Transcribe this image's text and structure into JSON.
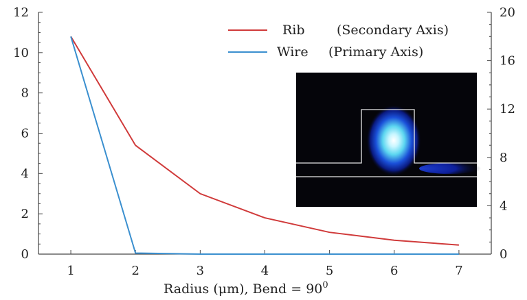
{
  "chart_data": {
    "type": "line",
    "x": [
      1,
      2,
      3,
      4,
      5,
      6,
      7
    ],
    "xlabel": "Radius (μm), Bend = 90",
    "xlabel_superscript": "0",
    "xlim": [
      0.5,
      7.5
    ],
    "y_left_lim": [
      0,
      12
    ],
    "y_left_ticks": [
      0,
      2,
      4,
      6,
      8,
      10,
      12
    ],
    "y_right_lim": [
      0,
      20
    ],
    "y_right_ticks": [
      0,
      4,
      8,
      12,
      16,
      20
    ],
    "legend_position": "top-right",
    "series": [
      {
        "name": "Rib",
        "axis_note": "(Secondary Axis)",
        "axis": "secondary",
        "color": "#d03a3a",
        "values": [
          18.0,
          9.0,
          5.0,
          3.0,
          1.8,
          1.15,
          0.75
        ]
      },
      {
        "name": "Wire",
        "axis_note": "(Primary Axis)",
        "axis": "primary",
        "color": "#3a8fcf",
        "values": [
          10.8,
          0.05,
          0.0,
          0.0,
          0.0,
          0.0,
          0.0
        ]
      }
    ],
    "inset": {
      "description_icon": "waveguide-mode-profile",
      "background_color": "#05050a",
      "outline_color": "#ffffff",
      "mode_color": "#7fe6ff"
    }
  }
}
